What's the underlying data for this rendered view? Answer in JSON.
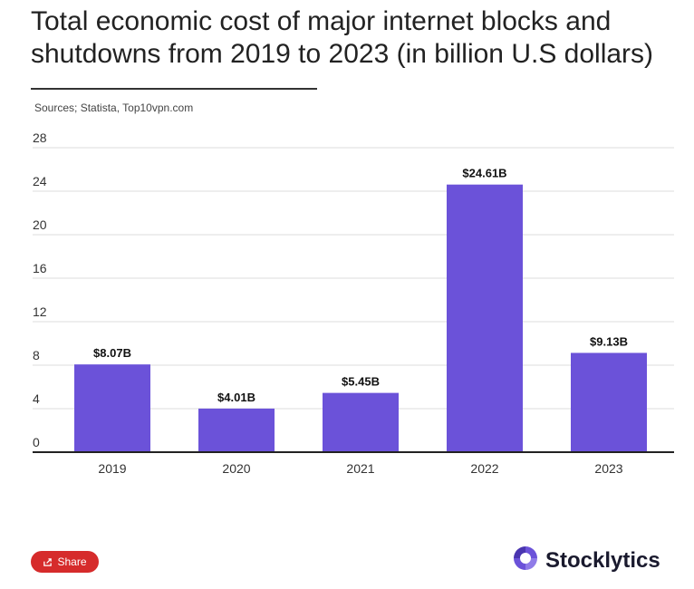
{
  "header": {
    "title": "Total economic cost of major internet blocks and shutdowns from 2019 to 2023 (in billion U.S dollars)",
    "sources": "Sources; Statista, Top10vpn.com"
  },
  "footer": {
    "share_label": "Share",
    "brand": "Stocklytics"
  },
  "colors": {
    "bar": "#6b52d9",
    "share": "#d62b2b"
  },
  "chart_data": {
    "type": "bar",
    "categories": [
      "2019",
      "2020",
      "2021",
      "2022",
      "2023"
    ],
    "values": [
      8.07,
      4.01,
      5.45,
      24.61,
      9.13
    ],
    "data_labels": [
      "$8.07B",
      "$4.01B",
      "$5.45B",
      "$24.61B",
      "$9.13B"
    ],
    "ylim": [
      0,
      28
    ],
    "yticks": [
      0,
      4,
      8,
      12,
      16,
      20,
      24,
      28
    ],
    "grid": true
  }
}
